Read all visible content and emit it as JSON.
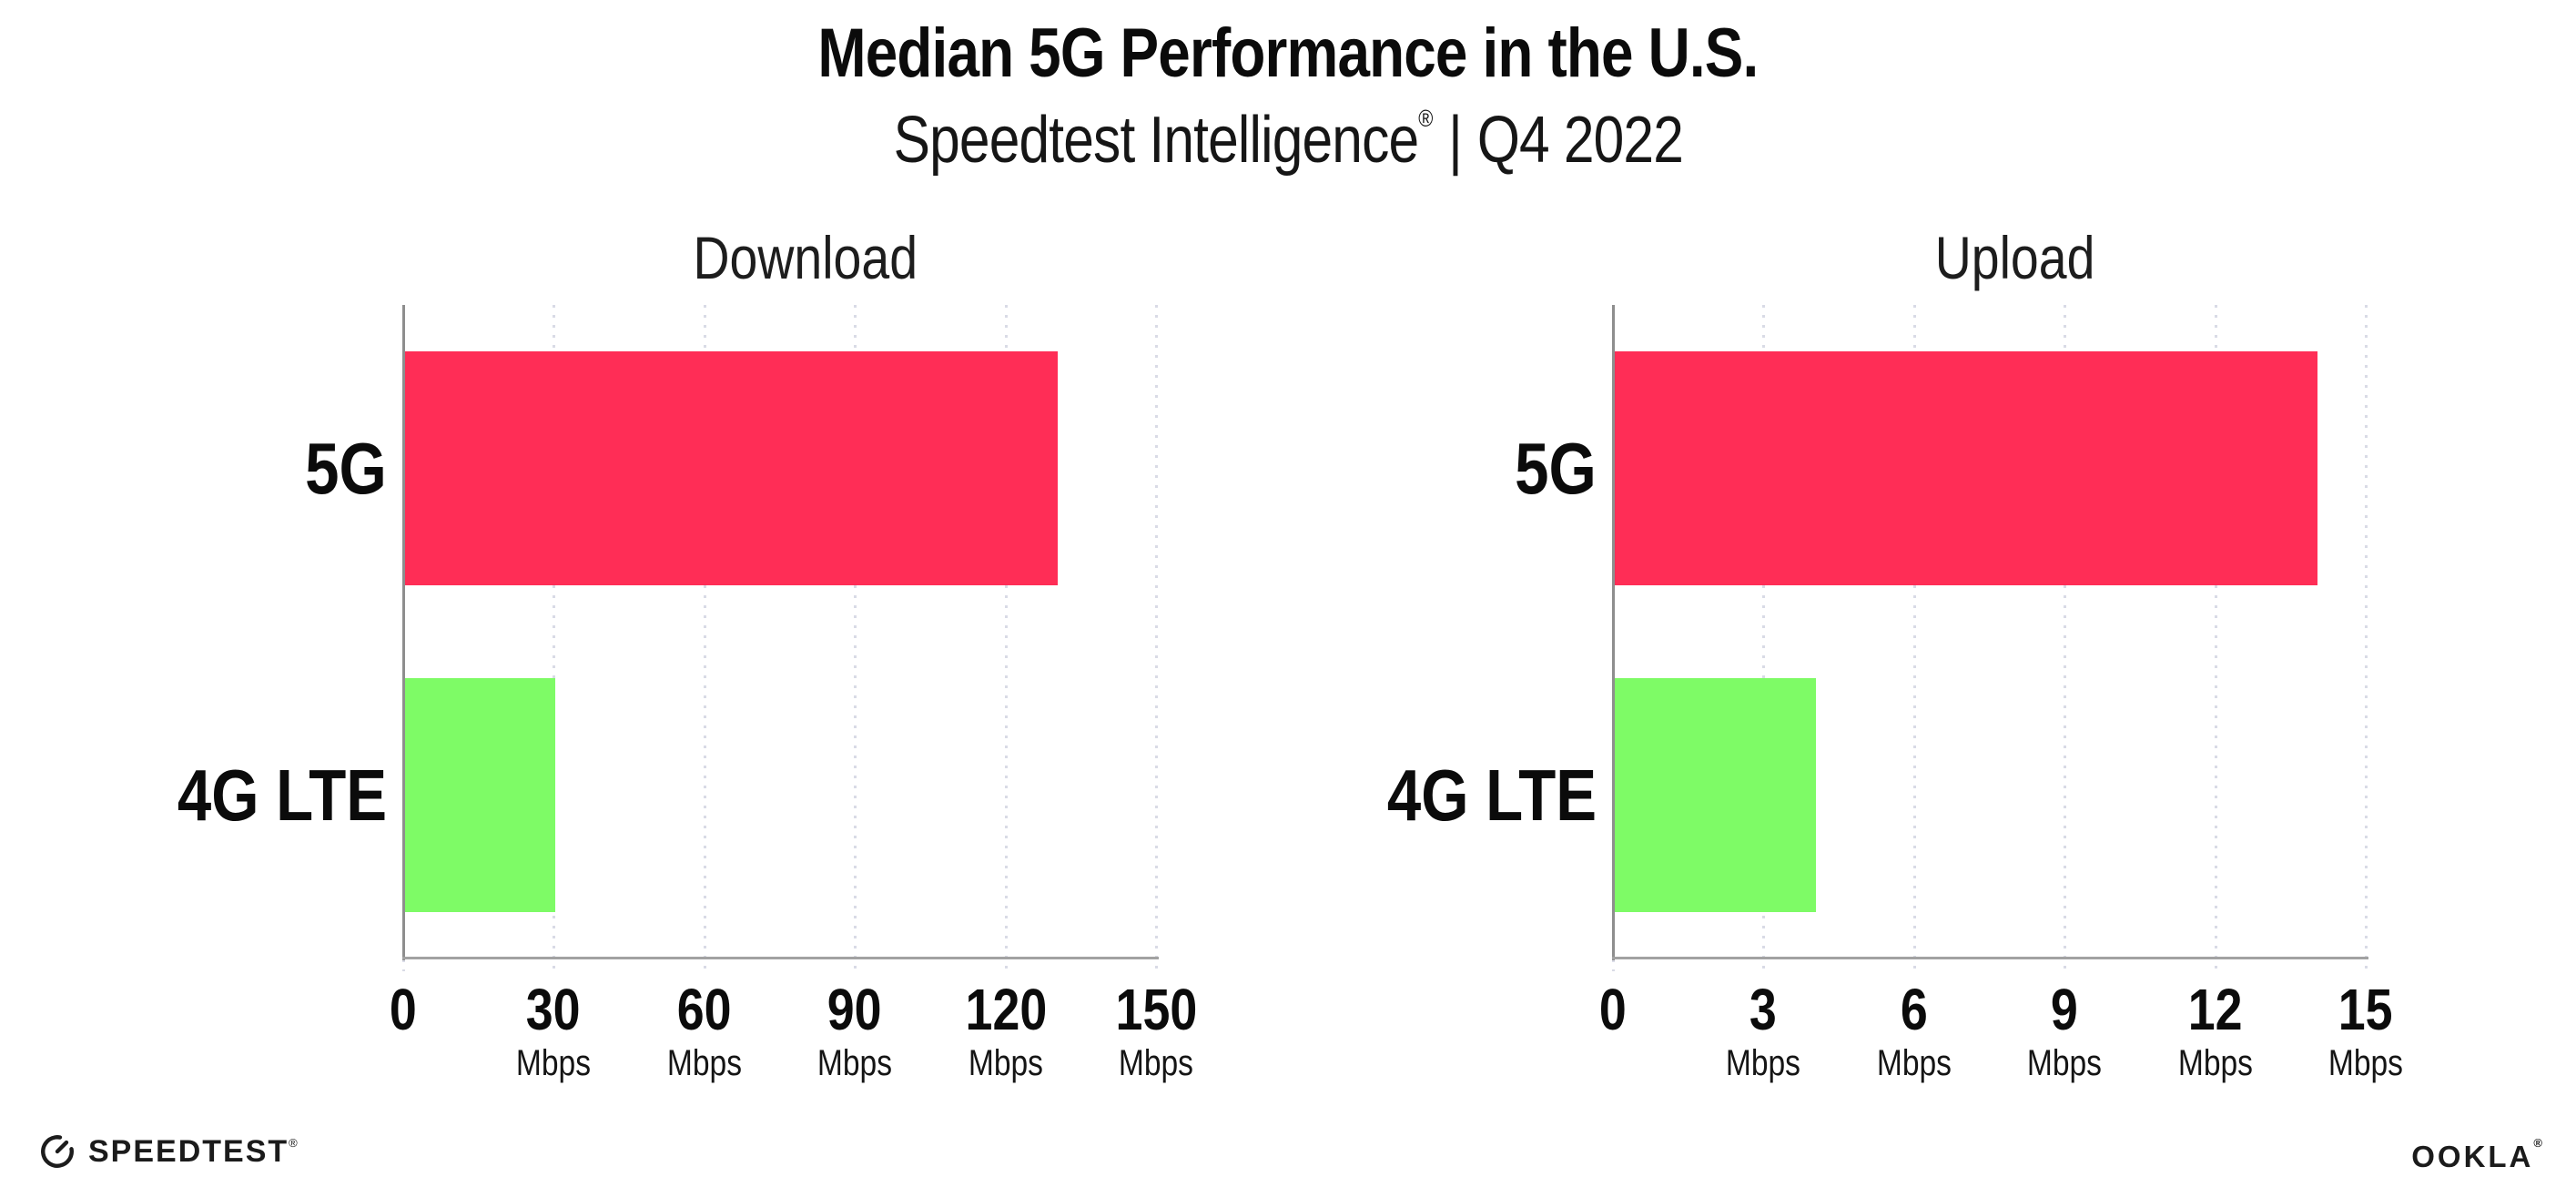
{
  "header": {
    "title": "Median 5G Performance in the U.S.",
    "subtitle_brand": "Speedtest Intelligence",
    "subtitle_reg": "®",
    "subtitle_divider": "|",
    "subtitle_period": "Q4 2022"
  },
  "chart_data": [
    {
      "type": "bar",
      "orientation": "horizontal",
      "title": "Download",
      "categories": [
        "5G",
        "4G LTE"
      ],
      "values": [
        130,
        30
      ],
      "unit": "Mbps",
      "xlim": [
        0,
        150
      ],
      "xticks": [
        0,
        30,
        60,
        90,
        120,
        150
      ],
      "tick_unit": "Mbps",
      "bar_colors": [
        "#ff2d56",
        "#7efb66"
      ],
      "grid": "dotted vertical gridline at each tick",
      "legend": "none",
      "data_labels": "none"
    },
    {
      "type": "bar",
      "orientation": "horizontal",
      "title": "Upload",
      "categories": [
        "5G",
        "4G LTE"
      ],
      "values": [
        14,
        4
      ],
      "unit": "Mbps",
      "xlim": [
        0,
        15
      ],
      "xticks": [
        0,
        3,
        6,
        9,
        12,
        15
      ],
      "tick_unit": "Mbps",
      "bar_colors": [
        "#ff2d56",
        "#7efb66"
      ],
      "grid": "dotted vertical gridline at each tick",
      "legend": "none",
      "data_labels": "none"
    }
  ],
  "footer": {
    "speedtest_label": "SPEEDTEST",
    "speedtest_reg": "®",
    "speedtest_icon": "speedtest-gauge-icon",
    "ookla_label": "OOKLA",
    "ookla_reg": "®"
  },
  "colors": {
    "bar_5g": "#ff2d56",
    "bar_4g_lte": "#7efb66",
    "axis_y": "#8e8e8e",
    "axis_x": "#a2a2a2",
    "grid_dot": "#d9dbe6",
    "background": "#ffffff",
    "text": "#0b0b0b"
  }
}
